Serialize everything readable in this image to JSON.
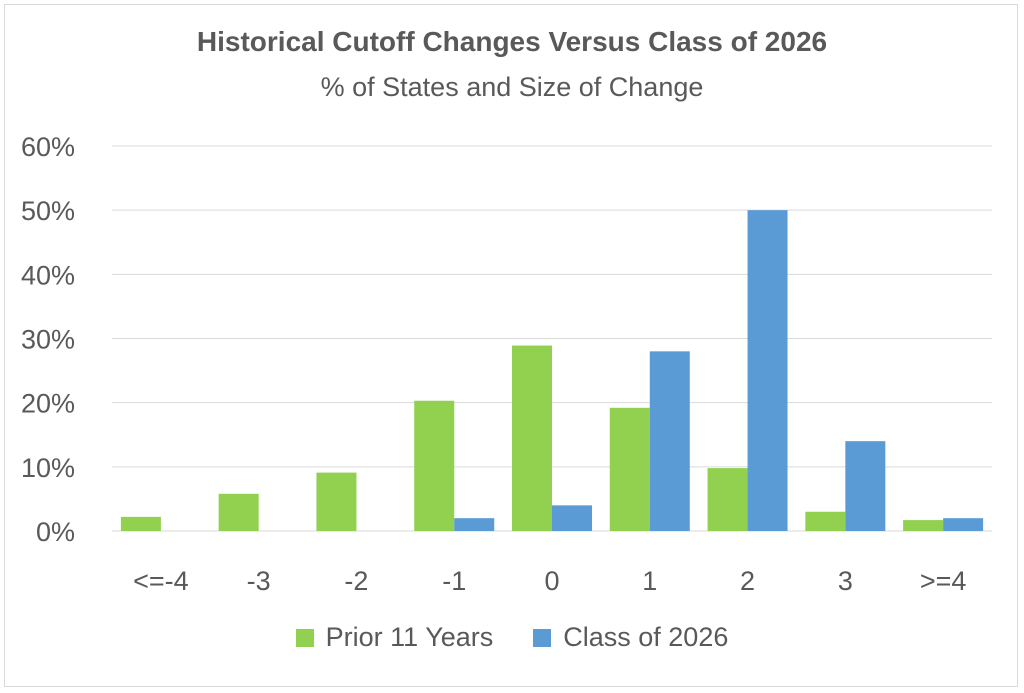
{
  "chart_data": {
    "type": "bar",
    "title": "Historical Cutoff Changes Versus Class of 2026",
    "subtitle": "% of States and Size of Change",
    "xlabel": "",
    "ylabel": "",
    "categories": [
      "<=-4",
      "-3",
      "-2",
      "-1",
      "0",
      "1",
      "2",
      "3",
      ">=4"
    ],
    "series": [
      {
        "name": "Prior 11 Years",
        "color": "#92d050",
        "values": [
          2.2,
          5.8,
          9.1,
          20.3,
          28.9,
          19.2,
          9.8,
          3.0,
          1.7
        ]
      },
      {
        "name": "Class of 2026",
        "color": "#5b9bd5",
        "values": [
          0,
          0,
          0,
          2.0,
          4.0,
          28.0,
          50.0,
          14.0,
          2.0
        ]
      }
    ],
    "ylim": [
      0,
      60
    ],
    "yticks": [
      "0%",
      "10%",
      "20%",
      "30%",
      "40%",
      "50%",
      "60%"
    ],
    "grid": true,
    "legend_position": "bottom"
  }
}
